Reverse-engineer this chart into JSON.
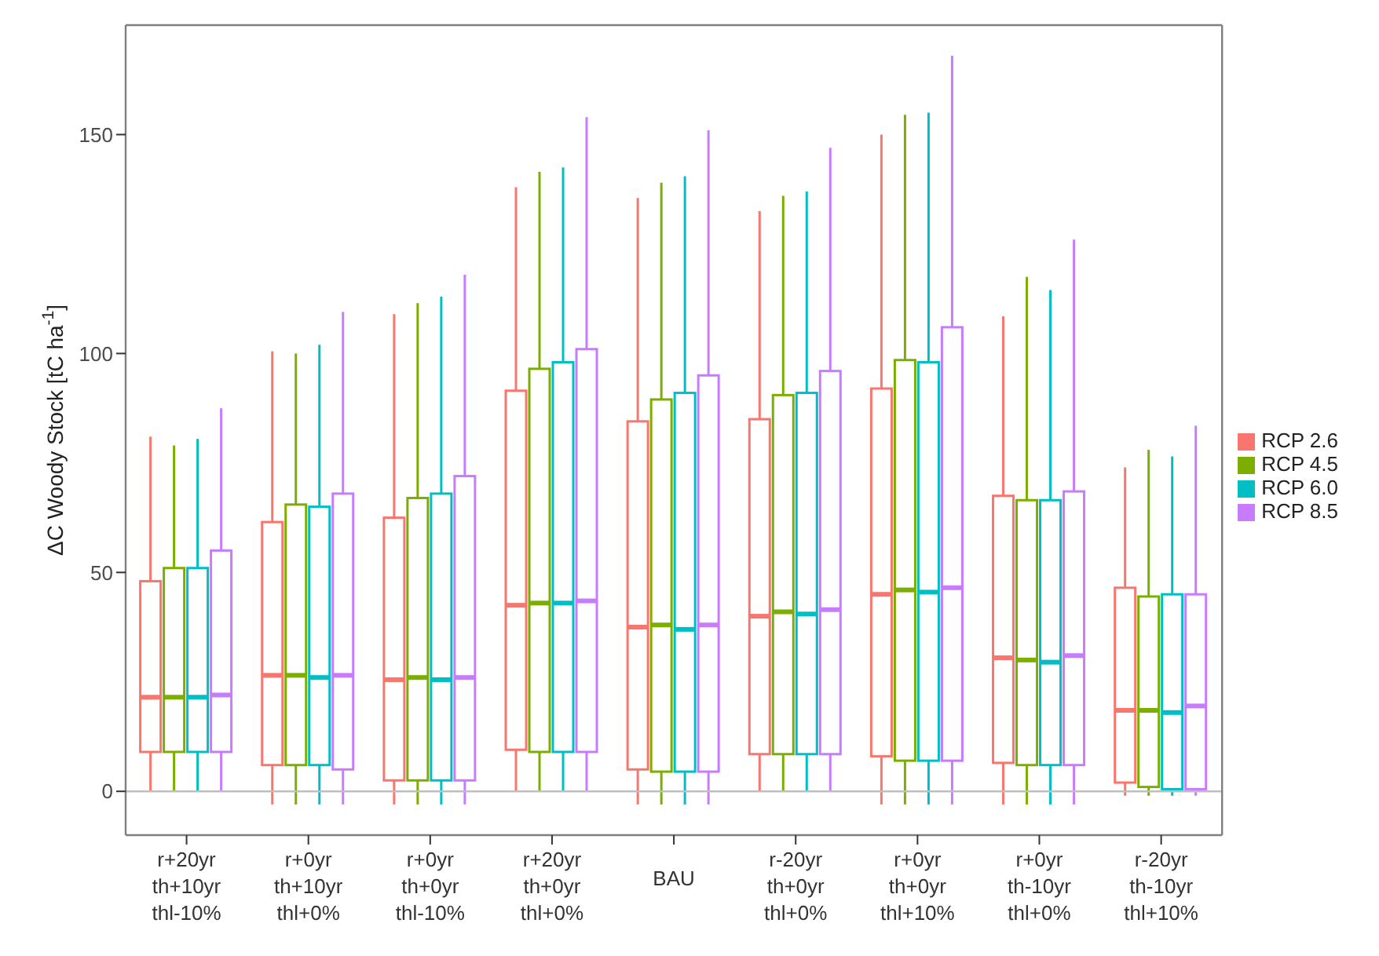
{
  "chart_data": {
    "type": "box",
    "ylabel": "ΔC Woody Stock [tC ha$^{-1}$]",
    "categories": [
      "r+20yr\nth+10yr\nthl-10%",
      "r+0yr\nth+10yr\nthl+0%",
      "r+0yr\nth+0yr\nthl-10%",
      "r+20yr\nth+0yr\nthl+0%",
      "BAU",
      "r-20yr\nth+0yr\nthl+0%",
      "r+0yr\nth+0yr\nthl+10%",
      "r+0yr\nth-10yr\nthl+0%",
      "r-20yr\nth-10yr\nthl+10%"
    ],
    "ylim": [
      -10,
      175
    ],
    "yticks": [
      0,
      50,
      100,
      150
    ],
    "legend": "right",
    "ref_lines": [
      {
        "axis": "y",
        "value": 0,
        "color": "#bfbfbf"
      }
    ],
    "series": [
      {
        "name": "RCP 2.6",
        "color": "#f8766d",
        "boxes": [
          {
            "low": 0,
            "q1": 9,
            "median": 21.5,
            "q3": 48,
            "high": 81
          },
          {
            "low": -3,
            "q1": 6,
            "median": 26.5,
            "q3": 61.5,
            "high": 100.5
          },
          {
            "low": -3,
            "q1": 2.5,
            "median": 25.5,
            "q3": 62.5,
            "high": 109
          },
          {
            "low": 0,
            "q1": 9.5,
            "median": 42.5,
            "q3": 91.5,
            "high": 138
          },
          {
            "low": -3,
            "q1": 5,
            "median": 37.5,
            "q3": 84.5,
            "high": 135.5
          },
          {
            "low": 0,
            "q1": 8.5,
            "median": 40,
            "q3": 85,
            "high": 132.5
          },
          {
            "low": -3,
            "q1": 8,
            "median": 45,
            "q3": 92,
            "high": 150
          },
          {
            "low": -3,
            "q1": 6.5,
            "median": 30.5,
            "q3": 67.5,
            "high": 108.5
          },
          {
            "low": -1,
            "q1": 2,
            "median": 18.5,
            "q3": 46.5,
            "high": 74
          }
        ]
      },
      {
        "name": "RCP 4.5",
        "color": "#7cae00",
        "boxes": [
          {
            "low": 0,
            "q1": 9,
            "median": 21.5,
            "q3": 51,
            "high": 79
          },
          {
            "low": -3,
            "q1": 6,
            "median": 26.5,
            "q3": 65.5,
            "high": 100
          },
          {
            "low": -3,
            "q1": 2.5,
            "median": 26,
            "q3": 67,
            "high": 111.5
          },
          {
            "low": 0,
            "q1": 9,
            "median": 43,
            "q3": 96.5,
            "high": 141.5
          },
          {
            "low": -3,
            "q1": 4.5,
            "median": 38,
            "q3": 89.5,
            "high": 139
          },
          {
            "low": 0,
            "q1": 8.5,
            "median": 41,
            "q3": 90.5,
            "high": 136
          },
          {
            "low": -3,
            "q1": 7,
            "median": 46,
            "q3": 98.5,
            "high": 154.5
          },
          {
            "low": -3,
            "q1": 6,
            "median": 30,
            "q3": 66.5,
            "high": 117.5
          },
          {
            "low": -1,
            "q1": 1,
            "median": 18.5,
            "q3": 44.5,
            "high": 78
          }
        ]
      },
      {
        "name": "RCP 6.0",
        "color": "#00bfc4",
        "boxes": [
          {
            "low": 0,
            "q1": 9,
            "median": 21.5,
            "q3": 51,
            "high": 80.5
          },
          {
            "low": -3,
            "q1": 6,
            "median": 26,
            "q3": 65,
            "high": 102
          },
          {
            "low": -3,
            "q1": 2.5,
            "median": 25.5,
            "q3": 68,
            "high": 113
          },
          {
            "low": 0,
            "q1": 9,
            "median": 43,
            "q3": 98,
            "high": 142.5
          },
          {
            "low": -3,
            "q1": 4.5,
            "median": 37,
            "q3": 91,
            "high": 140.5
          },
          {
            "low": 0,
            "q1": 8.5,
            "median": 40.5,
            "q3": 91,
            "high": 137
          },
          {
            "low": -3,
            "q1": 7,
            "median": 45.5,
            "q3": 98,
            "high": 155
          },
          {
            "low": -3,
            "q1": 6,
            "median": 29.5,
            "q3": 66.5,
            "high": 114.5
          },
          {
            "low": -1,
            "q1": 0.5,
            "median": 18,
            "q3": 45,
            "high": 76.5
          }
        ]
      },
      {
        "name": "RCP 8.5",
        "color": "#c77cff",
        "boxes": [
          {
            "low": 0,
            "q1": 9,
            "median": 22,
            "q3": 55,
            "high": 87.5
          },
          {
            "low": -3,
            "q1": 5,
            "median": 26.5,
            "q3": 68,
            "high": 109.5
          },
          {
            "low": -3,
            "q1": 2.5,
            "median": 26,
            "q3": 72,
            "high": 118
          },
          {
            "low": 0,
            "q1": 9,
            "median": 43.5,
            "q3": 101,
            "high": 154
          },
          {
            "low": -3,
            "q1": 4.5,
            "median": 38,
            "q3": 95,
            "high": 151
          },
          {
            "low": 0,
            "q1": 8.5,
            "median": 41.5,
            "q3": 96,
            "high": 147
          },
          {
            "low": -3,
            "q1": 7,
            "median": 46.5,
            "q3": 106,
            "high": 168
          },
          {
            "low": -3,
            "q1": 6,
            "median": 31,
            "q3": 68.5,
            "high": 126
          },
          {
            "low": -1,
            "q1": 0.5,
            "median": 19.5,
            "q3": 45,
            "high": 83.5
          }
        ]
      }
    ]
  }
}
